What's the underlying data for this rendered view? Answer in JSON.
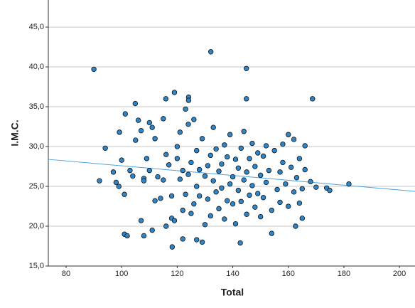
{
  "chart_data": {
    "type": "scatter",
    "x_label": "Total",
    "y_label": "I.M.C.",
    "xlim": [
      73.6,
      205.6
    ],
    "ylim": [
      15,
      48.4
    ],
    "xticks": [
      80,
      100,
      120,
      140,
      160,
      180,
      200
    ],
    "yticks": [
      {
        "value": 15,
        "label": "15,0"
      },
      {
        "value": 20,
        "label": "20,0"
      },
      {
        "value": 25,
        "label": "25,0"
      },
      {
        "value": 30,
        "label": "30,0"
      },
      {
        "value": 35,
        "label": "35,0"
      },
      {
        "value": 40,
        "label": "40,0"
      },
      {
        "value": 45,
        "label": "45,0"
      }
    ],
    "grid": true,
    "color": "#2e86c9",
    "fit_line": {
      "x": [
        73.6,
        205.6
      ],
      "y": [
        28.39,
        24.38
      ],
      "color": "#4aa3df"
    },
    "x": [
      90,
      132.1,
      144.9,
      144.9,
      168.7,
      119,
      124.1,
      124.1,
      104.9,
      115.9,
      94.1,
      92,
      173.8,
      174.9,
      181.8,
      101,
      118.2,
      142.7,
      162.6,
      165,
      101.3,
      99.2,
      97,
      98,
      99,
      100,
      101,
      103,
      104,
      105,
      106,
      107,
      108,
      108,
      109,
      110,
      110,
      111,
      112,
      112,
      113,
      114,
      115,
      115,
      116,
      116,
      117,
      118,
      118,
      119,
      120,
      120,
      121,
      121,
      122,
      122,
      122,
      123,
      123,
      124,
      124,
      125,
      125,
      126,
      126,
      127,
      127,
      128,
      128,
      129,
      129,
      130,
      130,
      131,
      131,
      132,
      132,
      133,
      133,
      134,
      134,
      135,
      135,
      136,
      136,
      137,
      137,
      138,
      138,
      139,
      139,
      140,
      140,
      141,
      141,
      142,
      142,
      143,
      143,
      144,
      144,
      145,
      145,
      146,
      146,
      147,
      147,
      148,
      148,
      149,
      149,
      150,
      150,
      151,
      151,
      152,
      152,
      153,
      154,
      154,
      155,
      156,
      157,
      157,
      158,
      158,
      159,
      160,
      160,
      161,
      162,
      162,
      163,
      164,
      164,
      165,
      166,
      166,
      168,
      170,
      102,
      107,
      108,
      111,
      127
    ],
    "y": [
      39.7,
      41.9,
      39.8,
      36,
      36,
      36.8,
      36.2,
      35.8,
      35.4,
      36,
      29.8,
      25.7,
      24.8,
      24.5,
      25.3,
      19,
      17.4,
      17.9,
      20,
      21,
      34.1,
      31.8,
      26.8,
      25.5,
      25,
      28.3,
      24,
      27,
      26.3,
      30.8,
      33.3,
      32,
      26,
      25.7,
      28.5,
      27,
      33,
      32.4,
      23.2,
      31,
      26.2,
      23.5,
      33.5,
      25.8,
      29,
      20,
      27.7,
      23.8,
      21,
      20.7,
      28.5,
      30,
      25.9,
      31.8,
      22,
      27,
      18.4,
      34.7,
      24,
      32.8,
      26.5,
      28,
      21.6,
      22.8,
      33.4,
      25,
      29.5,
      23.8,
      27.1,
      18,
      31,
      20.2,
      26.3,
      27.6,
      23.4,
      28.9,
      21.3,
      25.7,
      32.4,
      24.3,
      29.7,
      26.9,
      22.2,
      27.8,
      24.8,
      30.2,
      20.9,
      23.2,
      28.7,
      25.3,
      31.5,
      26.2,
      22.8,
      28.4,
      20.3,
      24.5,
      27.3,
      29.8,
      23.1,
      25.8,
      31.9,
      26.8,
      21.5,
      28.5,
      23.9,
      25.1,
      30.4,
      22.4,
      27.5,
      24.1,
      29.2,
      26.4,
      21.2,
      28.8,
      23.6,
      25.5,
      30.1,
      27,
      22,
      19.1,
      29.5,
      24.6,
      26.8,
      23,
      30.3,
      28,
      25.3,
      31.5,
      22.5,
      27.4,
      24.3,
      30.9,
      26.1,
      28.5,
      22.9,
      24.7,
      30.1,
      27.1,
      25.6,
      24.9,
      18.8,
      20.7,
      18.8,
      19.5,
      18.3
    ]
  }
}
